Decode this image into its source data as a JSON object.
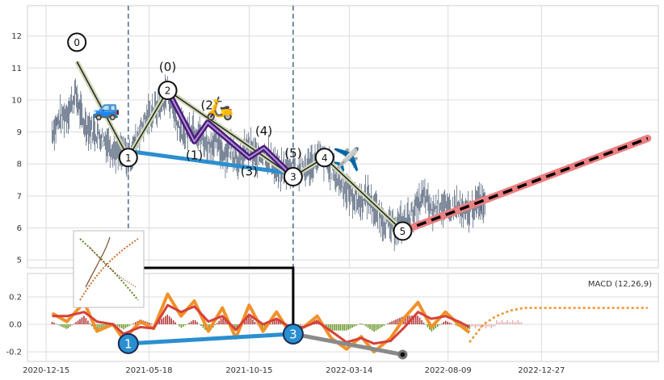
{
  "chart_data": [
    {
      "type": "line",
      "panel": "price",
      "x_range": [
        "2020-11-17",
        "2023-06-20"
      ],
      "ylim": [
        4.75,
        12.95
      ],
      "yticks": [
        5,
        6,
        7,
        8,
        9,
        10,
        11,
        12
      ],
      "grid": true,
      "vertical_dashed_lines": [
        "2021-04-17",
        "2021-12-20"
      ],
      "series": [
        {
          "values": [
            [
              "2020-12-24",
              9.0
            ],
            [
              "2021-01-04",
              9.4
            ],
            [
              "2021-01-16",
              9.6
            ],
            [
              "2021-01-28",
              10.2
            ],
            [
              "2021-02-08",
              9.3
            ],
            [
              "2021-02-20",
              9.1
            ],
            [
              "2021-03-04",
              8.9
            ],
            [
              "2021-03-16",
              8.7
            ],
            [
              "2021-03-28",
              8.4
            ],
            [
              "2021-04-09",
              8.3
            ],
            [
              "2021-04-17",
              8.1
            ],
            [
              "2021-04-28",
              8.7
            ],
            [
              "2021-05-10",
              9.3
            ],
            [
              "2021-05-22",
              9.6
            ],
            [
              "2021-06-03",
              9.8
            ],
            [
              "2021-06-15",
              10.3
            ],
            [
              "2021-06-27",
              9.4
            ],
            [
              "2021-07-09",
              8.9
            ],
            [
              "2021-07-21",
              9.2
            ],
            [
              "2021-08-02",
              8.9
            ],
            [
              "2021-08-14",
              8.6
            ],
            [
              "2021-08-26",
              8.7
            ],
            [
              "2021-09-07",
              8.3
            ],
            [
              "2021-09-19",
              8.5
            ],
            [
              "2021-10-01",
              8.0
            ],
            [
              "2021-10-13",
              8.6
            ],
            [
              "2021-10-25",
              8.2
            ],
            [
              "2021-11-06",
              8.4
            ],
            [
              "2021-11-18",
              8.1
            ],
            [
              "2021-11-30",
              7.7
            ],
            [
              "2021-12-12",
              7.9
            ],
            [
              "2021-12-24",
              7.8
            ],
            [
              "2022-01-05",
              7.8
            ],
            [
              "2022-01-17",
              8.0
            ],
            [
              "2022-01-29",
              8.2
            ],
            [
              "2022-02-10",
              8.0
            ],
            [
              "2022-02-22",
              7.6
            ],
            [
              "2022-03-06",
              7.3
            ],
            [
              "2022-03-18",
              7.0
            ],
            [
              "2022-03-30",
              6.8
            ],
            [
              "2022-04-11",
              7.0
            ],
            [
              "2022-04-23",
              6.5
            ],
            [
              "2022-05-05",
              6.2
            ],
            [
              "2022-05-17",
              6.0
            ],
            [
              "2022-05-29",
              6.1
            ],
            [
              "2022-06-10",
              6.3
            ],
            [
              "2022-06-22",
              6.6
            ],
            [
              "2022-07-04",
              7.0
            ],
            [
              "2022-07-16",
              6.5
            ],
            [
              "2022-07-28",
              6.8
            ],
            [
              "2022-08-09",
              6.5
            ],
            [
              "2022-08-21",
              6.7
            ],
            [
              "2022-09-02",
              6.4
            ],
            [
              "2022-09-14",
              6.6
            ],
            [
              "2022-09-26",
              6.8
            ],
            [
              "2022-10-04",
              6.9
            ]
          ]
        },
        {
          "values": [
            [
              "2021-01-30",
              11.2
            ],
            [
              "2021-04-17",
              8.2
            ],
            [
              "2021-06-15",
              10.3
            ],
            [
              "2021-12-20",
              7.6
            ],
            [
              "2022-02-05",
              8.2
            ],
            [
              "2022-06-02",
              5.9
            ]
          ]
        },
        {
          "values": [
            [
              "2021-06-15",
              10.3
            ],
            [
              "2021-07-25",
              8.7
            ],
            [
              "2021-08-14",
              9.3
            ],
            [
              "2021-10-15",
              8.2
            ],
            [
              "2021-11-06",
              8.5
            ],
            [
              "2021-12-20",
              7.6
            ]
          ]
        },
        {
          "values": [
            [
              "2021-04-17",
              8.4
            ],
            [
              "2021-12-20",
              7.7
            ]
          ]
        },
        {
          "values": [
            [
              "2022-06-02",
              5.9
            ],
            [
              "2023-06-04",
              8.8
            ]
          ]
        }
      ],
      "wave_labels": [
        {
          "text": "0",
          "x": "2021-01-30",
          "y": 11.2
        },
        {
          "text": "1",
          "x": "2021-04-17",
          "y": 8.2
        },
        {
          "text": "2",
          "x": "2021-06-15",
          "y": 10.3
        },
        {
          "text": "3",
          "x": "2021-12-20",
          "y": 7.6
        },
        {
          "text": "4",
          "x": "2022-02-05",
          "y": 8.2
        },
        {
          "text": "5",
          "x": "2022-06-02",
          "y": 5.9
        }
      ],
      "subwave_labels": [
        {
          "text": "(0)",
          "x": "2021-06-15",
          "y": 10.3
        },
        {
          "text": "(1)",
          "x": "2021-07-25",
          "y": 8.7
        },
        {
          "text": "(2)",
          "x": "2021-08-14",
          "y": 9.3
        },
        {
          "text": "(3)",
          "x": "2021-10-15",
          "y": 8.2
        },
        {
          "text": "(4)",
          "x": "2021-11-06",
          "y": 8.5
        },
        {
          "text": "(5)",
          "x": "2021-12-20",
          "y": 7.6
        }
      ],
      "icons": [
        {
          "name": "car-icon",
          "glyph": "🚙",
          "x": "2021-03-15",
          "y": 9.5
        },
        {
          "name": "scooter-icon",
          "glyph": "🛵",
          "x": "2021-09-01",
          "y": 9.5
        },
        {
          "name": "airplane-icon",
          "glyph": "✈️",
          "x": "2022-03-10",
          "y": 7.9
        }
      ]
    },
    {
      "type": "bar",
      "panel": "macd",
      "title": "MACD (12,26,9)",
      "ylim": [
        -0.27,
        0.37
      ],
      "yticks": [
        -0.2,
        0.0,
        0.2
      ],
      "x_ticks": [
        "2020-12-15",
        "2021-05-18",
        "2021-10-15",
        "2022-03-14",
        "2022-08-09",
        "2022-12-27"
      ],
      "grid": true,
      "series": [
        {
          "values": [
            [
              "2020-12-24",
              0.08
            ],
            [
              "2021-01-15",
              0.02
            ],
            [
              "2021-02-10",
              0.16
            ],
            [
              "2021-03-01",
              -0.05
            ],
            [
              "2021-03-25",
              0.0
            ],
            [
              "2021-04-10",
              -0.11
            ],
            [
              "2021-05-05",
              0.02
            ],
            [
              "2021-05-25",
              -0.03
            ],
            [
              "2021-06-15",
              0.22
            ],
            [
              "2021-07-05",
              0.06
            ],
            [
              "2021-07-25",
              0.17
            ],
            [
              "2021-08-15",
              -0.05
            ],
            [
              "2021-09-05",
              0.12
            ],
            [
              "2021-09-25",
              -0.1
            ],
            [
              "2021-10-15",
              0.14
            ],
            [
              "2021-11-05",
              -0.05
            ],
            [
              "2021-11-25",
              0.09
            ],
            [
              "2021-12-15",
              -0.06
            ],
            [
              "2022-01-05",
              -0.02
            ],
            [
              "2022-01-25",
              0.06
            ],
            [
              "2022-02-15",
              -0.1
            ],
            [
              "2022-03-10",
              -0.18
            ],
            [
              "2022-04-01",
              -0.09
            ],
            [
              "2022-04-20",
              -0.2
            ],
            [
              "2022-05-15",
              -0.1
            ],
            [
              "2022-06-05",
              0.05
            ],
            [
              "2022-06-25",
              0.16
            ],
            [
              "2022-07-15",
              -0.02
            ],
            [
              "2022-08-05",
              0.09
            ],
            [
              "2022-08-25",
              0.0
            ],
            [
              "2022-09-10",
              -0.06
            ]
          ]
        },
        {
          "values": [
            [
              "2020-12-24",
              0.06
            ],
            [
              "2021-01-15",
              0.06
            ],
            [
              "2021-02-10",
              0.09
            ],
            [
              "2021-03-01",
              0.02
            ],
            [
              "2021-03-25",
              0.0
            ],
            [
              "2021-04-10",
              -0.07
            ],
            [
              "2021-05-05",
              -0.02
            ],
            [
              "2021-05-25",
              -0.03
            ],
            [
              "2021-06-15",
              0.14
            ],
            [
              "2021-07-05",
              0.09
            ],
            [
              "2021-07-25",
              0.13
            ],
            [
              "2021-08-15",
              0.02
            ],
            [
              "2021-09-05",
              0.06
            ],
            [
              "2021-09-25",
              -0.04
            ],
            [
              "2021-10-15",
              0.07
            ],
            [
              "2021-11-05",
              0.0
            ],
            [
              "2021-11-25",
              0.04
            ],
            [
              "2021-12-15",
              -0.02
            ],
            [
              "2022-01-05",
              -0.02
            ],
            [
              "2022-01-25",
              0.02
            ],
            [
              "2022-02-15",
              -0.05
            ],
            [
              "2022-03-10",
              -0.13
            ],
            [
              "2022-04-01",
              -0.1
            ],
            [
              "2022-04-20",
              -0.14
            ],
            [
              "2022-05-15",
              -0.12
            ],
            [
              "2022-06-05",
              -0.02
            ],
            [
              "2022-06-25",
              0.09
            ],
            [
              "2022-07-15",
              0.04
            ],
            [
              "2022-08-05",
              0.06
            ],
            [
              "2022-08-25",
              0.02
            ],
            [
              "2022-09-10",
              -0.02
            ]
          ]
        },
        {
          "values": [
            [
              "2022-09-10",
              -0.13
            ],
            [
              "2022-10-01",
              0.0
            ],
            [
              "2022-10-20",
              0.06
            ],
            [
              "2022-11-10",
              0.1
            ],
            [
              "2022-12-01",
              0.12
            ],
            [
              "2022-12-27",
              0.12
            ],
            [
              "2023-03-01",
              0.12
            ],
            [
              "2023-06-04",
              0.12
            ]
          ]
        },
        {
          "values": [
            [
              "2021-04-17",
              -0.14
            ],
            [
              "2021-12-20",
              -0.07
            ]
          ]
        },
        {
          "values": [
            [
              "2021-12-20",
              -0.07
            ],
            [
              "2022-06-02",
              -0.22
            ]
          ]
        }
      ],
      "wave_labels": [
        {
          "text": "1",
          "x": "2021-04-17",
          "y": -0.14
        },
        {
          "text": "3",
          "x": "2021-12-20",
          "y": -0.07
        }
      ]
    }
  ]
}
